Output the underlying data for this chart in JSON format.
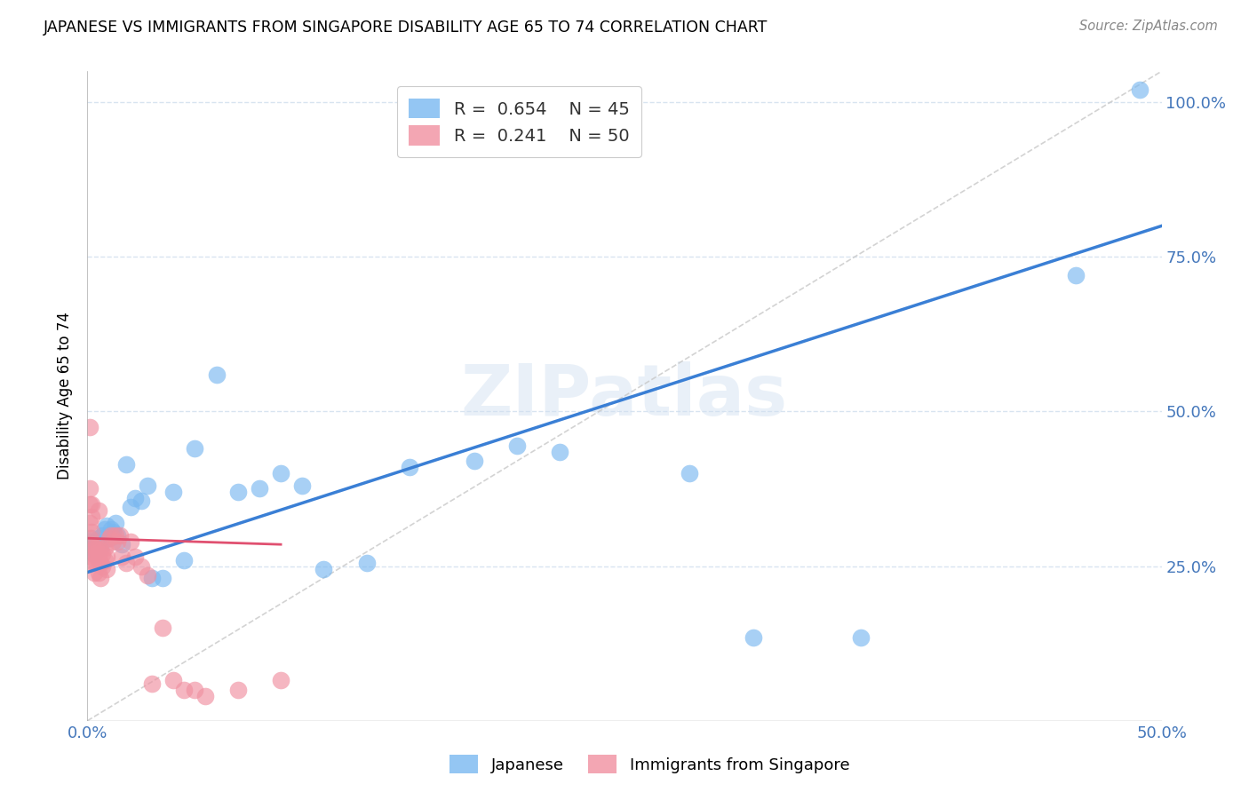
{
  "title": "JAPANESE VS IMMIGRANTS FROM SINGAPORE DISABILITY AGE 65 TO 74 CORRELATION CHART",
  "source": "Source: ZipAtlas.com",
  "ylabel": "Disability Age 65 to 74",
  "watermark": "ZIPatlas",
  "color_blue": "#7ab8f0",
  "color_pink": "#f090a0",
  "color_trendline_blue": "#3a7fd5",
  "color_trendline_pink": "#e05070",
  "color_diagonal": "#c8c8c8",
  "color_grid": "#d8e4f0",
  "color_axis_text": "#4477bb",
  "xmin": 0.0,
  "xmax": 0.5,
  "ymin": 0.0,
  "ymax": 1.05,
  "japanese_x": [
    0.001,
    0.002,
    0.002,
    0.003,
    0.003,
    0.004,
    0.004,
    0.005,
    0.005,
    0.006,
    0.007,
    0.008,
    0.009,
    0.01,
    0.011,
    0.012,
    0.013,
    0.014,
    0.016,
    0.018,
    0.02,
    0.022,
    0.025,
    0.028,
    0.03,
    0.035,
    0.04,
    0.045,
    0.05,
    0.06,
    0.07,
    0.08,
    0.09,
    0.1,
    0.11,
    0.13,
    0.15,
    0.18,
    0.2,
    0.22,
    0.28,
    0.31,
    0.36,
    0.46,
    0.49
  ],
  "japanese_y": [
    0.29,
    0.295,
    0.28,
    0.27,
    0.285,
    0.29,
    0.275,
    0.285,
    0.295,
    0.28,
    0.3,
    0.31,
    0.315,
    0.295,
    0.31,
    0.305,
    0.32,
    0.3,
    0.285,
    0.415,
    0.345,
    0.36,
    0.355,
    0.38,
    0.23,
    0.23,
    0.37,
    0.26,
    0.44,
    0.56,
    0.37,
    0.375,
    0.4,
    0.38,
    0.245,
    0.255,
    0.41,
    0.42,
    0.445,
    0.435,
    0.4,
    0.135,
    0.135,
    0.72,
    1.02
  ],
  "singapore_x": [
    0.001,
    0.001,
    0.001,
    0.001,
    0.001,
    0.002,
    0.002,
    0.002,
    0.002,
    0.002,
    0.003,
    0.003,
    0.003,
    0.003,
    0.004,
    0.004,
    0.004,
    0.005,
    0.005,
    0.005,
    0.005,
    0.006,
    0.006,
    0.006,
    0.007,
    0.007,
    0.008,
    0.008,
    0.009,
    0.009,
    0.01,
    0.011,
    0.012,
    0.013,
    0.014,
    0.015,
    0.016,
    0.018,
    0.02,
    0.022,
    0.025,
    0.028,
    0.03,
    0.035,
    0.04,
    0.045,
    0.05,
    0.055,
    0.07,
    0.09
  ],
  "singapore_y": [
    0.475,
    0.375,
    0.35,
    0.32,
    0.295,
    0.35,
    0.33,
    0.305,
    0.285,
    0.265,
    0.28,
    0.27,
    0.255,
    0.24,
    0.28,
    0.265,
    0.255,
    0.34,
    0.28,
    0.265,
    0.24,
    0.275,
    0.255,
    0.23,
    0.27,
    0.25,
    0.28,
    0.26,
    0.265,
    0.245,
    0.295,
    0.3,
    0.29,
    0.3,
    0.29,
    0.3,
    0.265,
    0.255,
    0.29,
    0.265,
    0.25,
    0.235,
    0.06,
    0.15,
    0.065,
    0.05,
    0.05,
    0.04,
    0.05,
    0.065
  ],
  "trendline_blue_x0": 0.0,
  "trendline_blue_y0": 0.24,
  "trendline_blue_x1": 0.5,
  "trendline_blue_y1": 0.8,
  "trendline_pink_x0": 0.0,
  "trendline_pink_y0": 0.295,
  "trendline_pink_x1": 0.09,
  "trendline_pink_y1": 0.285
}
